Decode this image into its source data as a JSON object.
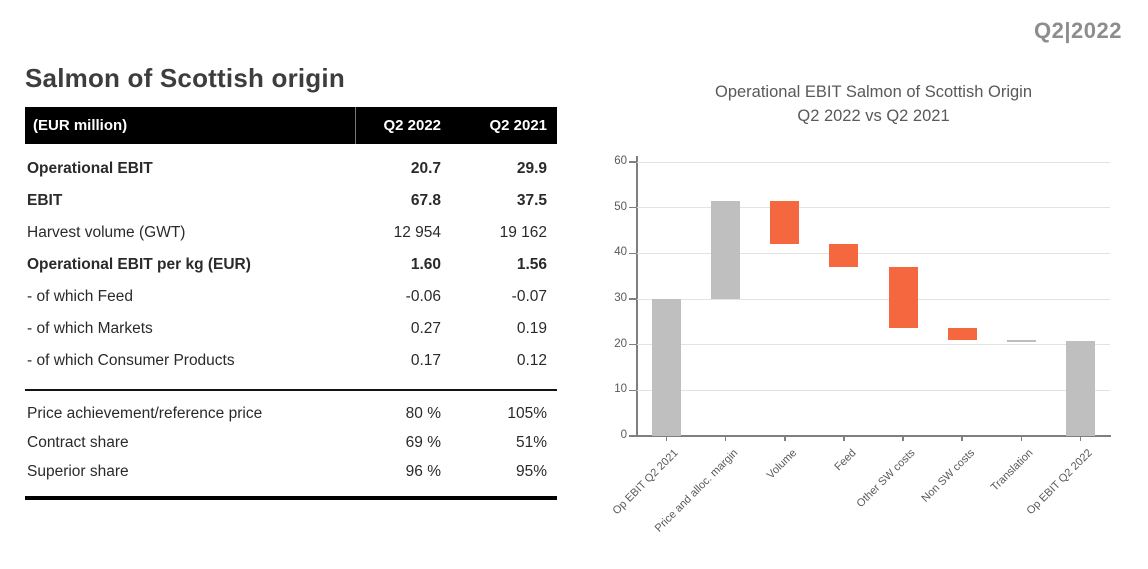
{
  "slide": {
    "period_badge": "Q2|2022",
    "title": "Salmon of Scottish origin"
  },
  "table": {
    "unit_label": "(EUR million)",
    "columns": [
      "Q2 2022",
      "Q2 2021"
    ],
    "sections": [
      {
        "rows": [
          {
            "label": "Operational EBIT",
            "values": [
              "20.7",
              "29.9"
            ],
            "bold": true
          },
          {
            "label": "EBIT",
            "values": [
              "67.8",
              "37.5"
            ],
            "bold": true
          },
          {
            "label": "Harvest volume (GWT)",
            "values": [
              "12 954",
              "19 162"
            ],
            "bold": false
          },
          {
            "label": "Operational EBIT per kg (EUR)",
            "values": [
              "1.60",
              "1.56"
            ],
            "bold": true
          },
          {
            "label": "- of which Feed",
            "values": [
              "-0.06",
              "-0.07"
            ],
            "bold": false
          },
          {
            "label": "- of which Markets",
            "values": [
              "0.27",
              "0.19"
            ],
            "bold": false
          },
          {
            "label": "- of which Consumer Products",
            "values": [
              "0.17",
              "0.12"
            ],
            "bold": false
          }
        ]
      },
      {
        "rows": [
          {
            "label": "Price achievement/reference price",
            "values": [
              "80 %",
              "105%"
            ],
            "bold": false
          },
          {
            "label": "Contract share",
            "values": [
              "69 %",
              "51%"
            ],
            "bold": false
          },
          {
            "label": "Superior share",
            "values": [
              "96 %",
              "95%"
            ],
            "bold": false
          }
        ]
      }
    ]
  },
  "chart_data": {
    "type": "bar",
    "subtype": "waterfall",
    "title_line1": "Operational EBIT Salmon of Scottish Origin",
    "title_line2": "Q2 2022 vs Q2 2021",
    "ylim": [
      0,
      60
    ],
    "yticks": [
      0,
      10,
      20,
      30,
      40,
      50,
      60
    ],
    "grid": true,
    "legend": false,
    "categories": [
      "Op EBIT Q2 2021",
      "Price and alloc. margin",
      "Volume",
      "Feed",
      "Other SW costs",
      "Non SW costs",
      "Translation",
      "Op EBIT Q2 2022"
    ],
    "segments": [
      {
        "label": "Op EBIT Q2 2021",
        "from": 0,
        "to": 29.9,
        "role": "total"
      },
      {
        "label": "Price and alloc. margin",
        "from": 29.9,
        "to": 51.4,
        "role": "increase"
      },
      {
        "label": "Volume",
        "from": 51.4,
        "to": 42.0,
        "role": "decrease"
      },
      {
        "label": "Feed",
        "from": 42.0,
        "to": 37.0,
        "role": "decrease"
      },
      {
        "label": "Other SW costs",
        "from": 37.0,
        "to": 23.6,
        "role": "decrease"
      },
      {
        "label": "Non SW costs",
        "from": 23.6,
        "to": 21.0,
        "role": "decrease"
      },
      {
        "label": "Translation",
        "from": 21.0,
        "to": 20.7,
        "role": "neutral"
      },
      {
        "label": "Op EBIT Q2 2022",
        "from": 0,
        "to": 20.7,
        "role": "total"
      }
    ],
    "colors": {
      "total": "#BFBFBF",
      "increase": "#BFBFBF",
      "decrease": "#F4673F",
      "neutral": "#BDBDBD"
    }
  },
  "theme_colors": {
    "header_bg": "#000000",
    "header_text": "#ffffff",
    "body_text": "#2a2a2a",
    "title_text": "#3d3d3c",
    "badge_text": "#8d8d8d",
    "axis": "#7f7f7f",
    "gridline": "#e3e3e3",
    "chart_title": "#595959"
  }
}
